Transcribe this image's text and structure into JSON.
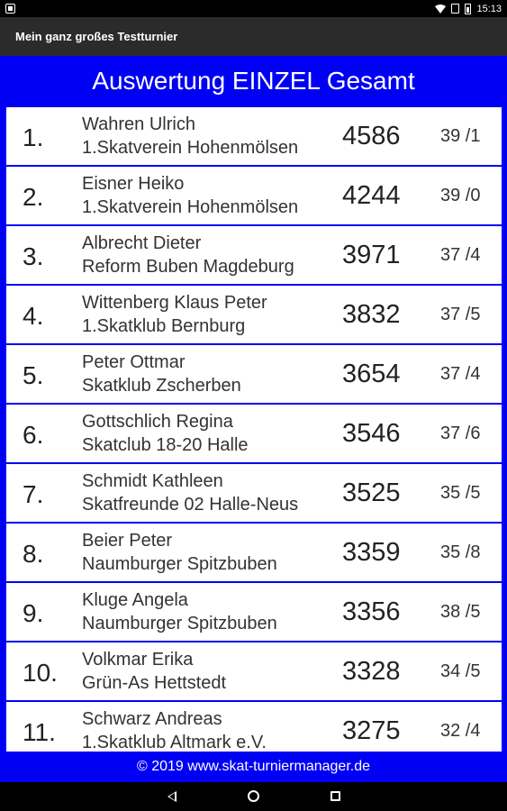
{
  "status": {
    "time": "15:13"
  },
  "app": {
    "title": "Mein ganz großes Testturnier"
  },
  "heading": "Auswertung EINZEL Gesamt",
  "rows": [
    {
      "rank": "1.",
      "name": "Wahren Ulrich",
      "club": "1.Skatverein Hohenmölsen",
      "points": "4586",
      "games": "39 /1"
    },
    {
      "rank": "2.",
      "name": "Eisner Heiko",
      "club": "1.Skatverein Hohenmölsen",
      "points": "4244",
      "games": "39 /0"
    },
    {
      "rank": "3.",
      "name": "Albrecht Dieter",
      "club": "Reform Buben Magdeburg",
      "points": "3971",
      "games": "37 /4"
    },
    {
      "rank": "4.",
      "name": "Wittenberg Klaus Peter",
      "club": "1.Skatklub Bernburg",
      "points": "3832",
      "games": "37 /5"
    },
    {
      "rank": "5.",
      "name": "Peter Ottmar",
      "club": "Skatklub Zscherben",
      "points": "3654",
      "games": "37 /4"
    },
    {
      "rank": "6.",
      "name": "Gottschlich Regina",
      "club": "Skatclub 18-20 Halle",
      "points": "3546",
      "games": "37 /6"
    },
    {
      "rank": "7.",
      "name": "Schmidt Kathleen",
      "club": "Skatfreunde 02 Halle-Neus",
      "points": "3525",
      "games": "35 /5"
    },
    {
      "rank": "8.",
      "name": "Beier Peter",
      "club": "Naumburger Spitzbuben",
      "points": "3359",
      "games": "35 /8"
    },
    {
      "rank": "9.",
      "name": "Kluge Angela",
      "club": "Naumburger Spitzbuben",
      "points": "3356",
      "games": "38 /5"
    },
    {
      "rank": "10.",
      "name": "Volkmar Erika",
      "club": "Grün-As Hettstedt",
      "points": "3328",
      "games": "34 /5"
    },
    {
      "rank": "11.",
      "name": "Schwarz Andreas",
      "club": "1.Skatklub Altmark e.V.",
      "points": "3275",
      "games": "32 /4"
    }
  ],
  "footer": "© 2019 www.skat-turniermanager.de"
}
